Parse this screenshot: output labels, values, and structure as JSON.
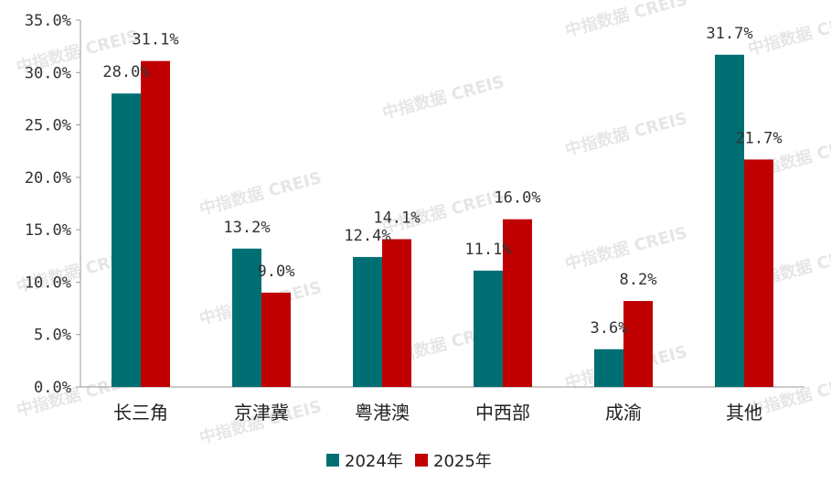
{
  "watermark_text": "中指数据 CREIS",
  "chart_data": {
    "type": "bar",
    "categories": [
      "长三角",
      "京津冀",
      "粤港澳",
      "中西部",
      "成渝",
      "其他"
    ],
    "series": [
      {
        "name": "2024年",
        "color": "#006f74",
        "values": [
          28.0,
          13.2,
          12.4,
          11.1,
          3.6,
          31.7
        ],
        "labels": [
          "28.0%",
          "13.2%",
          "12.4%",
          "11.1%",
          "3.6%",
          "31.7%"
        ]
      },
      {
        "name": "2025年",
        "color": "#c00000",
        "values": [
          31.1,
          9.0,
          14.1,
          16.0,
          8.2,
          21.7
        ],
        "labels": [
          "31.1%",
          "9.0%",
          "14.1%",
          "16.0%",
          "8.2%",
          "21.7%"
        ]
      }
    ],
    "ylim": [
      0,
      35
    ],
    "yticks": [
      0,
      5,
      10,
      15,
      20,
      25,
      30,
      35
    ],
    "ytick_labels": [
      "0.0%",
      "5.0%",
      "10.0%",
      "15.0%",
      "20.0%",
      "25.0%",
      "30.0%",
      "35.0%"
    ],
    "legend": "bottom",
    "grid": false
  }
}
